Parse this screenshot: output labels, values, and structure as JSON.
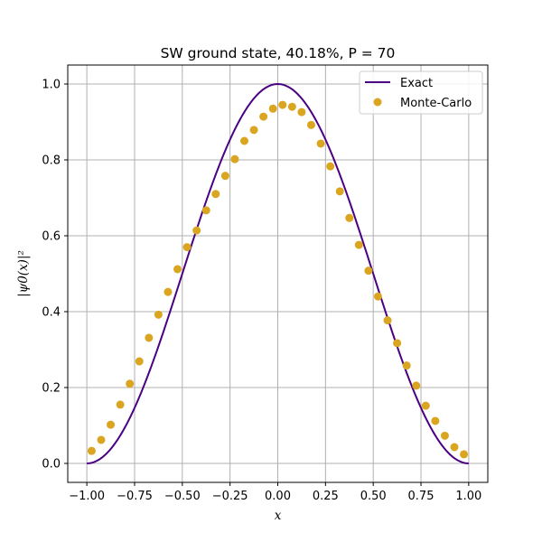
{
  "chart_data": {
    "type": "line+scatter",
    "title": "SW ground state, 40.18%, P = 70",
    "xlabel": "x",
    "ylabel": "|ψ0(x)|²",
    "xlim": [
      -1.1,
      1.1
    ],
    "ylim": [
      -0.05,
      1.05
    ],
    "x_ticks": [
      -1.0,
      -0.75,
      -0.5,
      -0.25,
      0.0,
      0.25,
      0.5,
      0.75,
      1.0
    ],
    "x_tick_labels": [
      "−1.00",
      "−0.75",
      "−0.50",
      "−0.25",
      "0.00",
      "0.25",
      "0.50",
      "0.75",
      "1.00"
    ],
    "y_ticks": [
      0.0,
      0.2,
      0.4,
      0.6,
      0.8,
      1.0
    ],
    "y_tick_labels": [
      "0.0",
      "0.2",
      "0.4",
      "0.6",
      "0.8",
      "1.0"
    ],
    "grid": true,
    "legend_position": "upper-right",
    "series": [
      {
        "name": "Exact",
        "kind": "line",
        "color": "#4B0082",
        "function": "cos^2(pi*x/2)",
        "x_range": [
          -1.0,
          1.0
        ]
      },
      {
        "name": "Monte-Carlo",
        "kind": "scatter",
        "color": "#DAA520",
        "points": [
          [
            -0.975,
            0.033
          ],
          [
            -0.925,
            0.062
          ],
          [
            -0.875,
            0.102
          ],
          [
            -0.825,
            0.155
          ],
          [
            -0.775,
            0.21
          ],
          [
            -0.725,
            0.269
          ],
          [
            -0.675,
            0.331
          ],
          [
            -0.625,
            0.392
          ],
          [
            -0.575,
            0.452
          ],
          [
            -0.525,
            0.512
          ],
          [
            -0.475,
            0.57
          ],
          [
            -0.425,
            0.614
          ],
          [
            -0.375,
            0.667
          ],
          [
            -0.325,
            0.71
          ],
          [
            -0.275,
            0.758
          ],
          [
            -0.225,
            0.802
          ],
          [
            -0.175,
            0.85
          ],
          [
            -0.125,
            0.879
          ],
          [
            -0.075,
            0.914
          ],
          [
            -0.025,
            0.935
          ],
          [
            0.025,
            0.945
          ],
          [
            0.075,
            0.94
          ],
          [
            0.125,
            0.926
          ],
          [
            0.175,
            0.892
          ],
          [
            0.225,
            0.843
          ],
          [
            0.275,
            0.783
          ],
          [
            0.325,
            0.717
          ],
          [
            0.375,
            0.647
          ],
          [
            0.425,
            0.576
          ],
          [
            0.475,
            0.508
          ],
          [
            0.525,
            0.44
          ],
          [
            0.575,
            0.377
          ],
          [
            0.625,
            0.317
          ],
          [
            0.675,
            0.258
          ],
          [
            0.725,
            0.205
          ],
          [
            0.775,
            0.152
          ],
          [
            0.825,
            0.112
          ],
          [
            0.875,
            0.073
          ],
          [
            0.925,
            0.043
          ],
          [
            0.975,
            0.024
          ]
        ]
      }
    ]
  }
}
